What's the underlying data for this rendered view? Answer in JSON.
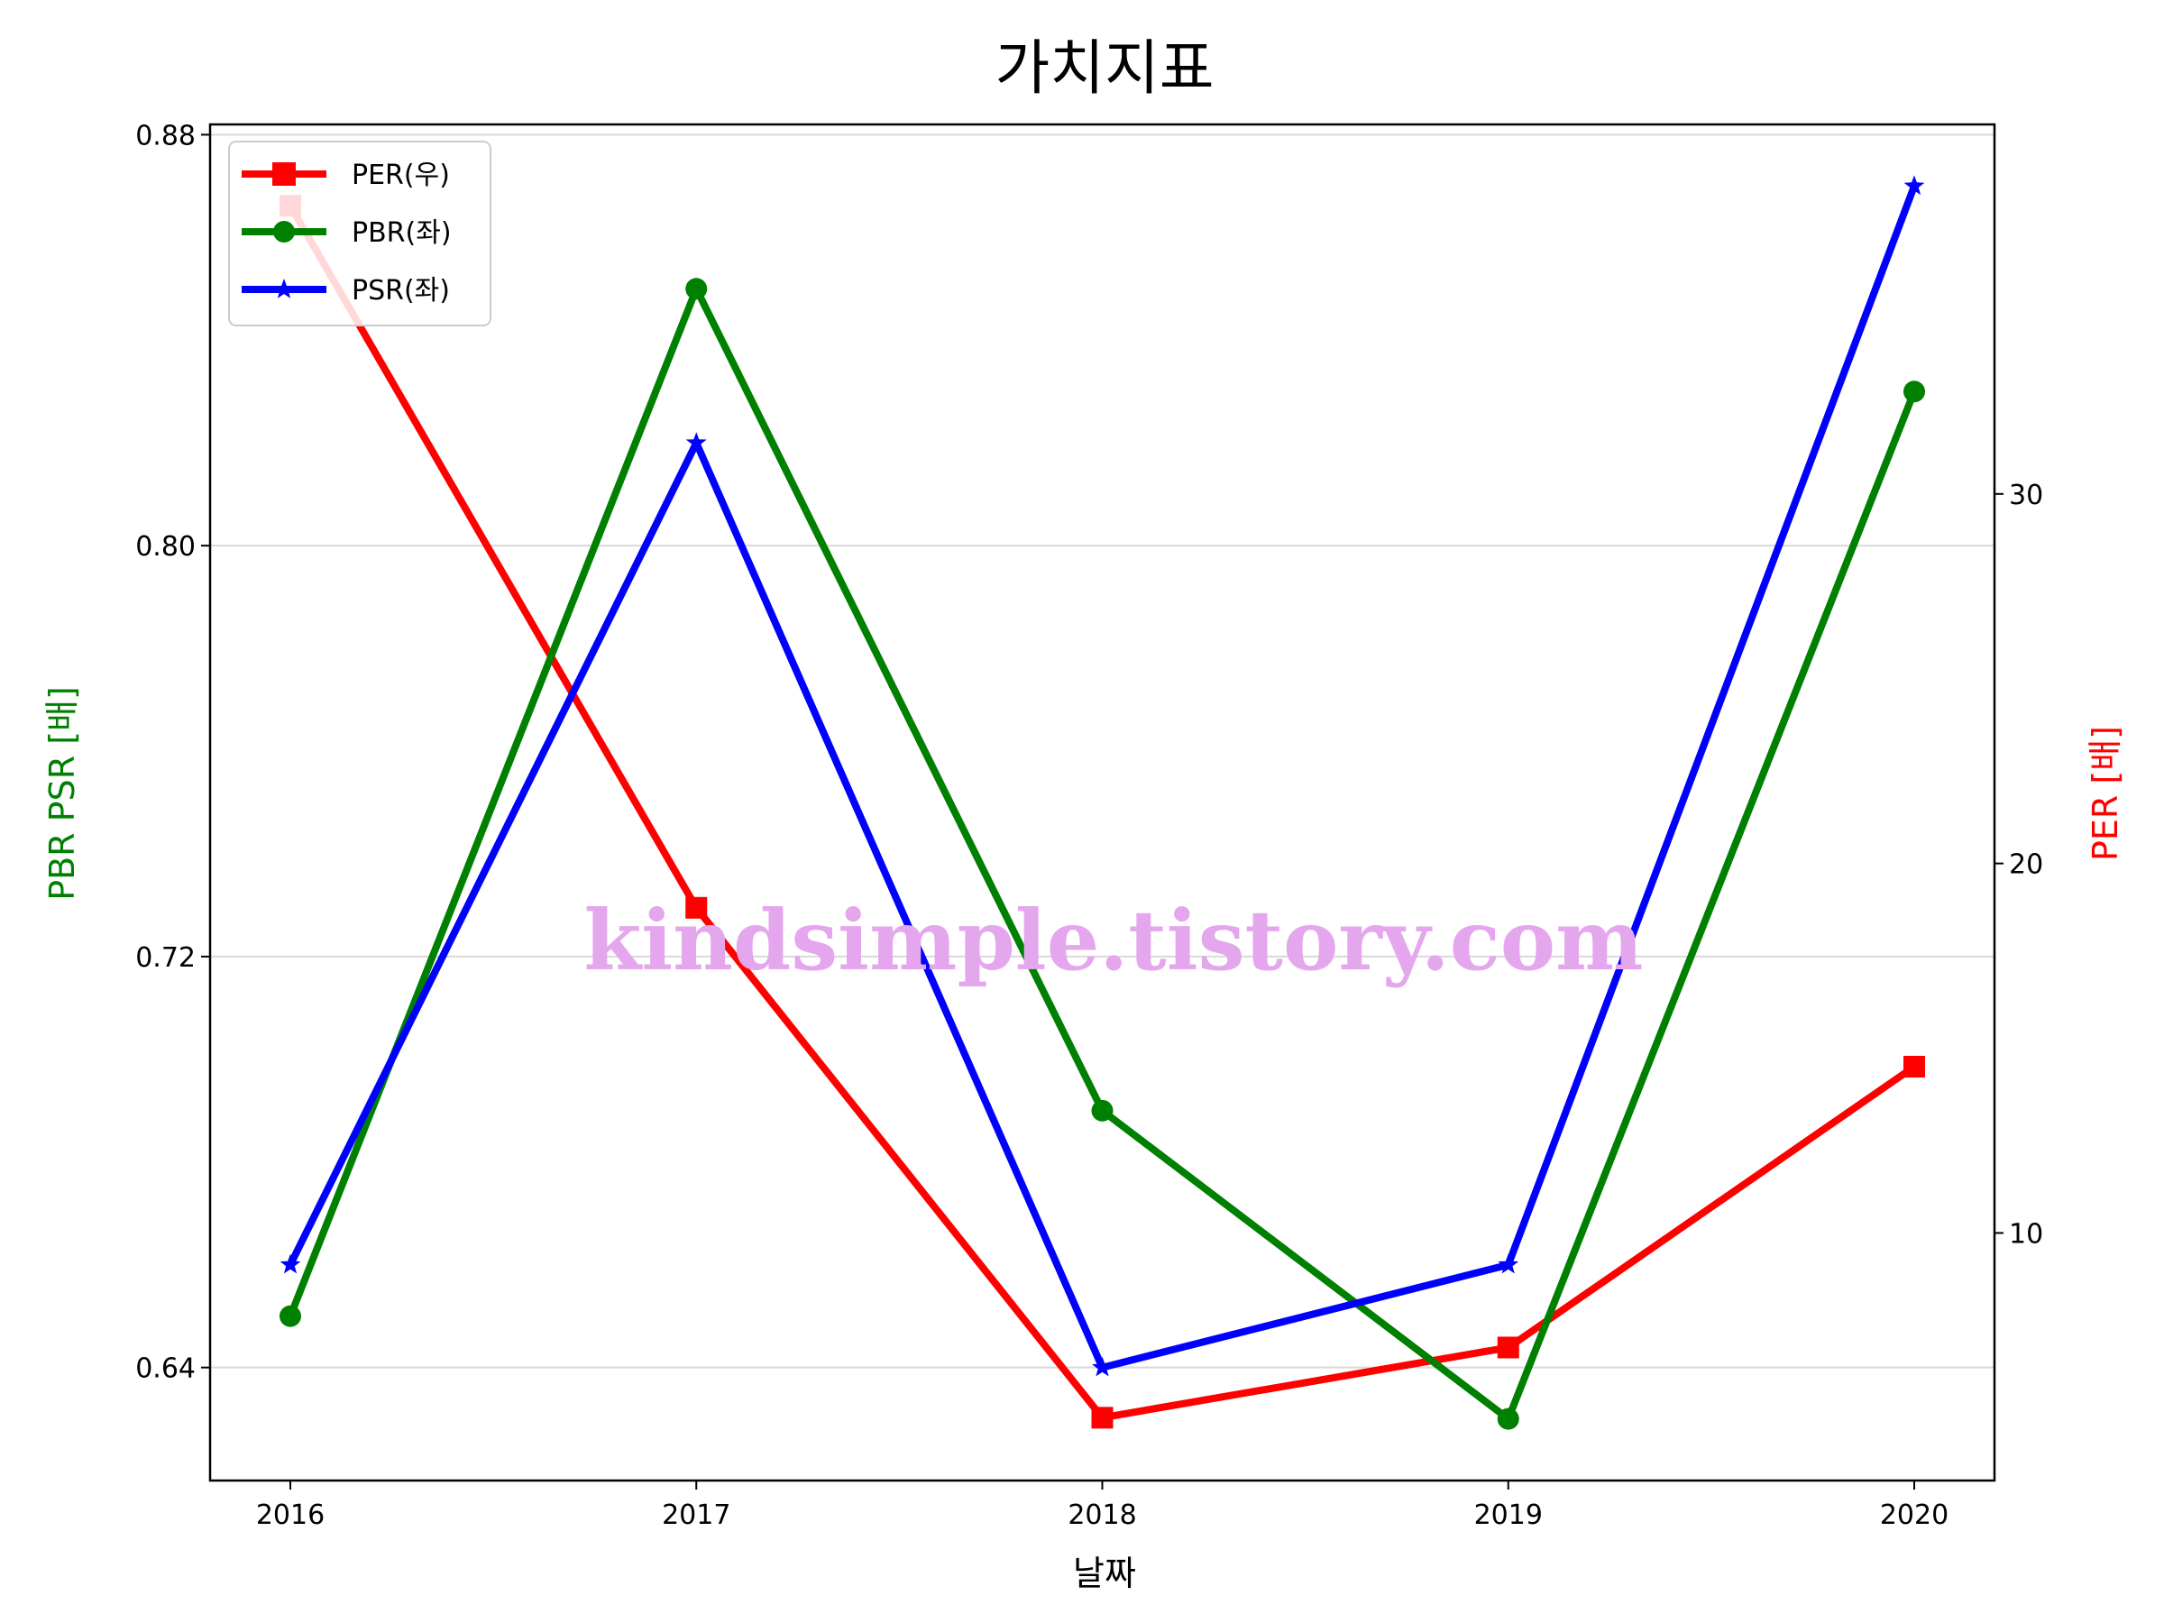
{
  "chart_data": {
    "type": "line",
    "title": "가치지표",
    "xlabel": "날짜",
    "ylabel_left": "PBR PSR [배]",
    "ylabel_right": "PER [배]",
    "categories": [
      "2016",
      "2017",
      "2018",
      "2019",
      "2020"
    ],
    "left_axis": {
      "ylim": [
        0.618,
        0.882
      ],
      "ticks": [
        0.64,
        0.72,
        0.8,
        0.88
      ],
      "tick_labels": [
        "0.64",
        "0.72",
        "0.80",
        "0.88"
      ]
    },
    "right_axis": {
      "ylim": [
        3.3,
        40.0
      ],
      "ticks": [
        10,
        20,
        30
      ],
      "tick_labels": [
        "10",
        "20",
        "30"
      ]
    },
    "series": [
      {
        "name": "PER(우)",
        "axis": "right",
        "color": "#ff0000",
        "marker": "square",
        "values": [
          37.8,
          18.8,
          5.0,
          6.9,
          14.5
        ]
      },
      {
        "name": "PBR(좌)",
        "axis": "left",
        "color": "#008000",
        "marker": "circle",
        "values": [
          0.65,
          0.85,
          0.69,
          0.63,
          0.83
        ]
      },
      {
        "name": "PSR(좌)",
        "axis": "left",
        "color": "#0000ff",
        "marker": "star",
        "values": [
          0.66,
          0.82,
          0.64,
          0.66,
          0.87
        ]
      }
    ],
    "grid": "horizontal",
    "legend_position": "top-left",
    "watermark": "kindsimple.tistory.com",
    "watermark_color": "#e4a6ec",
    "left_label_color": "#008000",
    "right_label_color": "#ff0000"
  }
}
